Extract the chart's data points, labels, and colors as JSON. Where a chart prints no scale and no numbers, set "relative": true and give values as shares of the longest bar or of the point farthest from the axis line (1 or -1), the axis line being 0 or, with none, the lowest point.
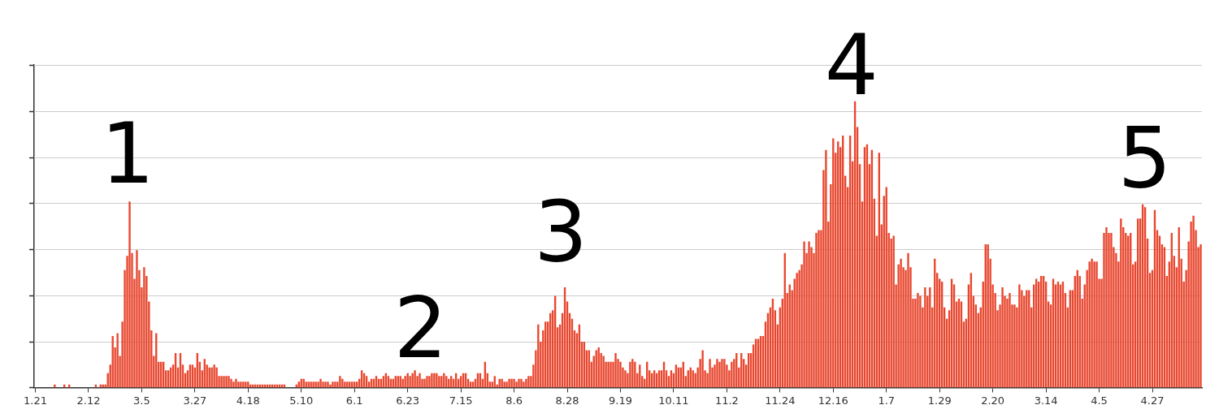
{
  "chart_data": {
    "type": "bar",
    "relative": true,
    "color": "#e8472f",
    "grid": "y",
    "tick_labels": "x",
    "legend": false,
    "annotations": [
      "1",
      "2",
      "3",
      "4",
      "5"
    ],
    "categories": [
      "1.21",
      null,
      null,
      null,
      null,
      null,
      null,
      null,
      null,
      null,
      null,
      null,
      null,
      null,
      null,
      null,
      null,
      null,
      null,
      null,
      null,
      null,
      "2.12",
      null,
      null,
      null,
      null,
      null,
      null,
      null,
      null,
      null,
      null,
      null,
      null,
      null,
      null,
      null,
      null,
      null,
      null,
      null,
      null,
      null,
      "3.5",
      null,
      null,
      null,
      null,
      null,
      null,
      null,
      null,
      null,
      null,
      null,
      null,
      null,
      null,
      null,
      null,
      null,
      null,
      null,
      null,
      null,
      "3.27",
      null,
      null,
      null,
      null,
      null,
      null,
      null,
      null,
      null,
      null,
      null,
      null,
      null,
      null,
      null,
      null,
      null,
      null,
      null,
      null,
      null,
      "4.18",
      null,
      null,
      null,
      null,
      null,
      null,
      null,
      null,
      null,
      null,
      null,
      null,
      null,
      null,
      null,
      null,
      null,
      null,
      null,
      null,
      null,
      "5.10",
      null,
      null,
      null,
      null,
      null,
      null,
      null,
      null,
      null,
      null,
      null,
      null,
      null,
      null,
      null,
      null,
      null,
      null,
      null,
      null,
      null,
      "6.1",
      null,
      null,
      null,
      null,
      null,
      null,
      null,
      null,
      null,
      null,
      null,
      null,
      null,
      null,
      null,
      null,
      null,
      null,
      null,
      null,
      null,
      "6.23",
      null,
      null,
      null,
      null,
      null,
      null,
      null,
      null,
      null,
      null,
      null,
      null,
      null,
      null,
      null,
      null,
      null,
      null,
      null,
      null,
      null,
      "7.15",
      null,
      null,
      null,
      null,
      null,
      null,
      null,
      null,
      null,
      null,
      null,
      null,
      null,
      null,
      null,
      null,
      null,
      null,
      null,
      null,
      null,
      "8.6",
      null,
      null,
      null,
      null,
      null,
      null,
      null,
      null,
      null,
      null,
      null,
      null,
      null,
      null,
      null,
      null,
      null,
      null,
      null,
      null,
      null,
      "8.28",
      null,
      null,
      null,
      null,
      null,
      null,
      null,
      null,
      null,
      null,
      null,
      null,
      null,
      null,
      null,
      null,
      null,
      null,
      null,
      null,
      null,
      "9.19",
      null,
      null,
      null,
      null,
      null,
      null,
      null,
      null,
      null,
      null,
      null,
      null,
      null,
      null,
      null,
      null,
      null,
      null,
      null,
      null,
      null,
      "10.11",
      null,
      null,
      null,
      null,
      null,
      null,
      null,
      null,
      null,
      null,
      null,
      null,
      null,
      null,
      null,
      null,
      null,
      null,
      null,
      null,
      null,
      "11.2",
      null,
      null,
      null,
      null,
      null,
      null,
      null,
      null,
      null,
      null,
      null,
      null,
      null,
      null,
      null,
      null,
      null,
      null,
      null,
      null,
      null,
      "11.24",
      null,
      null,
      null,
      null,
      null,
      null,
      null,
      null,
      null,
      null,
      null,
      null,
      null,
      null,
      null,
      null,
      null,
      null,
      null,
      null,
      null,
      "12.16",
      null,
      null,
      null,
      null,
      null,
      null,
      null,
      null,
      null,
      null,
      null,
      null,
      null,
      null,
      null,
      null,
      null,
      null,
      null,
      null,
      null,
      "1.7",
      null,
      null,
      null,
      null,
      null,
      null,
      null,
      null,
      null,
      null,
      null,
      null,
      null,
      null,
      null,
      null,
      null,
      null,
      null,
      null,
      null,
      "1.29",
      null,
      null,
      null,
      null,
      null,
      null,
      null,
      null,
      null,
      null,
      null,
      null,
      null,
      null,
      null,
      null,
      null,
      null,
      null,
      null,
      null,
      "2.20",
      null,
      null,
      null,
      null,
      null,
      null,
      null,
      null,
      null,
      null,
      null,
      null,
      null,
      null,
      null,
      null,
      null,
      null,
      null,
      null,
      null,
      "3.14",
      null,
      null,
      null,
      null,
      null,
      null,
      null,
      null,
      null,
      null,
      null,
      null,
      null,
      null,
      null,
      null,
      null,
      null,
      null,
      null,
      null,
      "4.5",
      null,
      null,
      null,
      null,
      null,
      null,
      null,
      null,
      null,
      null,
      null,
      null,
      null,
      null,
      null,
      null,
      null,
      null,
      null,
      null,
      null,
      "4.27",
      null,
      null,
      null,
      null,
      null,
      null,
      null,
      null,
      null,
      null,
      null,
      null,
      null,
      null,
      null,
      null,
      null,
      null,
      null,
      null
    ],
    "values": [
      0,
      0,
      0,
      0,
      0,
      0,
      0,
      0,
      0.01,
      0,
      0,
      0,
      0.01,
      0,
      0.01,
      0,
      0,
      0,
      0,
      0,
      0,
      0,
      0,
      0,
      0,
      0.01,
      0,
      0.01,
      0.01,
      0.01,
      0.05,
      0.08,
      0.18,
      0.14,
      0.19,
      0.11,
      0.23,
      0.41,
      0.46,
      0.65,
      0.47,
      0.38,
      0.48,
      0.41,
      0.35,
      0.42,
      0.39,
      0.3,
      0.2,
      0.11,
      0.19,
      0.09,
      0.09,
      0.09,
      0.06,
      0.06,
      0.07,
      0.08,
      0.12,
      0.07,
      0.12,
      0.08,
      0.05,
      0.06,
      0.08,
      0.08,
      0.07,
      0.12,
      0.09,
      0.06,
      0.1,
      0.08,
      0.07,
      0.07,
      0.08,
      0.07,
      0.04,
      0.04,
      0.04,
      0.04,
      0.04,
      0.03,
      0.02,
      0.03,
      0.02,
      0.02,
      0.02,
      0.02,
      0.02,
      0.01,
      0.01,
      0.01,
      0.01,
      0.01,
      0.01,
      0.01,
      0.01,
      0.01,
      0.01,
      0.01,
      0.01,
      0.01,
      0.01,
      0.01,
      0,
      0,
      0,
      0,
      0.01,
      0.02,
      0.03,
      0.03,
      0.02,
      0.02,
      0.02,
      0.02,
      0.02,
      0.02,
      0.03,
      0.02,
      0.02,
      0.02,
      0.01,
      0.02,
      0.02,
      0.02,
      0.04,
      0.03,
      0.02,
      0.02,
      0.02,
      0.02,
      0.02,
      0.02,
      0.03,
      0.06,
      0.05,
      0.04,
      0.02,
      0.03,
      0.03,
      0.04,
      0.03,
      0.03,
      0.04,
      0.05,
      0.04,
      0.03,
      0.03,
      0.04,
      0.04,
      0.04,
      0.03,
      0.04,
      0.05,
      0.04,
      0.05,
      0.06,
      0.04,
      0.05,
      0.03,
      0.03,
      0.04,
      0.04,
      0.05,
      0.05,
      0.05,
      0.04,
      0.04,
      0.05,
      0.04,
      0.03,
      0.04,
      0.03,
      0.05,
      0.03,
      0.04,
      0.05,
      0.05,
      0.03,
      0.02,
      0.02,
      0.03,
      0.05,
      0.05,
      0.03,
      0.09,
      0.05,
      0.02,
      0.02,
      0.04,
      0.01,
      0.03,
      0.03,
      0.02,
      0.02,
      0.03,
      0.03,
      0.03,
      0.02,
      0.03,
      0.03,
      0.02,
      0.03,
      0.04,
      0.04,
      0.08,
      0.13,
      0.22,
      0.16,
      0.2,
      0.23,
      0.23,
      0.26,
      0.27,
      0.32,
      0.21,
      0.22,
      0.26,
      0.35,
      0.3,
      0.26,
      0.24,
      0.2,
      0.19,
      0.22,
      0.16,
      0.16,
      0.13,
      0.13,
      0.09,
      0.11,
      0.13,
      0.14,
      0.12,
      0.11,
      0.09,
      0.09,
      0.09,
      0.09,
      0.12,
      0.1,
      0.09,
      0.07,
      0.06,
      0.05,
      0.09,
      0.1,
      0.09,
      0.05,
      0.08,
      0.04,
      0.03,
      0.09,
      0.06,
      0.05,
      0.06,
      0.05,
      0.06,
      0.06,
      0.09,
      0.06,
      0.04,
      0.06,
      0.05,
      0.08,
      0.07,
      0.07,
      0.09,
      0.04,
      0.06,
      0.07,
      0.06,
      0.05,
      0.07,
      0.1,
      0.13,
      0.06,
      0.05,
      0.1,
      0.07,
      0.08,
      0.1,
      0.09,
      0.1,
      0.1,
      0.08,
      0.06,
      0.09,
      0.1,
      0.12,
      0.07,
      0.12,
      0.1,
      0.08,
      0.12,
      0.12,
      0.15,
      0.17,
      0.17,
      0.18,
      0.18,
      0.23,
      0.26,
      0.28,
      0.31,
      0.27,
      0.22,
      0.28,
      0.31,
      0.47,
      0.33,
      0.36,
      0.34,
      0.38,
      0.4,
      0.41,
      0.43,
      0.51,
      0.47,
      0.51,
      0.49,
      0.47,
      0.54,
      0.55,
      0.55,
      0.76,
      0.83,
      0.58,
      0.71,
      0.87,
      0.82,
      0.86,
      0.84,
      0.88,
      0.74,
      0.7,
      0.88,
      0.79,
      1.0,
      0.91,
      0.78,
      0.65,
      0.84,
      0.85,
      0.78,
      0.83,
      0.66,
      0.53,
      0.82,
      0.57,
      0.67,
      0.7,
      0.54,
      0.52,
      0.53,
      0.36,
      0.43,
      0.45,
      0.42,
      0.41,
      0.47,
      0.42,
      0.31,
      0.31,
      0.33,
      0.32,
      0.28,
      0.35,
      0.32,
      0.35,
      0.28,
      0.45,
      0.4,
      0.38,
      0.37,
      0.28,
      0.24,
      0.27,
      0.38,
      0.36,
      0.3,
      0.31,
      0.3,
      0.23,
      0.24,
      0.36,
      0.4,
      0.32,
      0.29,
      0.26,
      0.28,
      0.37,
      0.5,
      0.5,
      0.45,
      0.36,
      0.33,
      0.27,
      0.29,
      0.35,
      0.32,
      0.31,
      0.33,
      0.29,
      0.29,
      0.28,
      0.36,
      0.34,
      0.32,
      0.34,
      0.34,
      0.28,
      0.36,
      0.38,
      0.37,
      0.39,
      0.39,
      0.37,
      0.3,
      0.29,
      0.38,
      0.36,
      0.37,
      0.36,
      0.37,
      0.33,
      0.28,
      0.34,
      0.34,
      0.39,
      0.41,
      0.39,
      0.31,
      0.36,
      0.41,
      0.44,
      0.45,
      0.44,
      0.44,
      0.38,
      0.38,
      0.54,
      0.56,
      0.54,
      0.54,
      0.49,
      0.47,
      0.44,
      0.59,
      0.56,
      0.54,
      0.53,
      0.54,
      0.43,
      0.44,
      0.59,
      0.59,
      0.64,
      0.63,
      0.52,
      0.4,
      0.41,
      0.62,
      0.55,
      0.53,
      0.5,
      0.49,
      0.39,
      0.44,
      0.54,
      0.46,
      0.42,
      0.56,
      0.45,
      0.37,
      0.41,
      0.51,
      0.58,
      0.6,
      0.55,
      0.49,
      0.5
    ]
  }
}
